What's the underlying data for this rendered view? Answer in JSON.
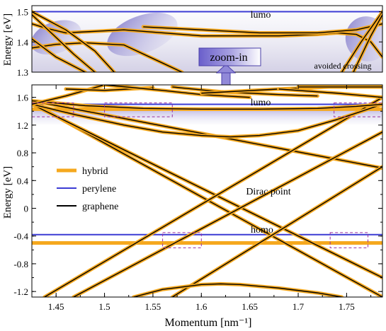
{
  "colors": {
    "hybrid": "#F5A81E",
    "perylene": "#3B3BD4",
    "graphene": "#000000",
    "highlight": "#8C82C8",
    "dashed_box": "#9A2FA0",
    "zoom_box": "#7A6FD0"
  },
  "chart_data": [
    {
      "id": "top-panel",
      "type": "line",
      "title": "",
      "xlabel": "",
      "ylabel": "Energy [eV]",
      "xlim": [
        1.425,
        1.787
      ],
      "ylim": [
        1.3,
        1.52
      ],
      "yticks": [
        1.3,
        1.4,
        1.5
      ],
      "ytick_labels": [
        "1.3",
        "1.4",
        "1.5"
      ],
      "annotations": [
        "lumo",
        "avoided crossing"
      ],
      "lumo_level": 1.5,
      "hybrid_band": {
        "x": [
          1.425,
          1.44,
          1.46,
          1.49,
          1.52,
          1.56,
          1.6,
          1.64,
          1.68,
          1.72,
          1.74,
          1.76,
          1.775,
          1.787
        ],
        "y": [
          1.46,
          1.445,
          1.43,
          1.435,
          1.44,
          1.43,
          1.42,
          1.42,
          1.42,
          1.425,
          1.43,
          1.425,
          1.4,
          1.35
        ]
      },
      "hybrid_lower": {
        "x": [
          1.425,
          1.45,
          1.48,
          1.52,
          1.56,
          1.58
        ],
        "y": [
          1.38,
          1.392,
          1.397,
          1.39,
          1.33,
          1.3
        ]
      },
      "graphene_lines": [
        {
          "x": [
            1.425,
            1.445,
            1.468,
            1.49
          ],
          "y": [
            1.49,
            1.43,
            1.36,
            1.3
          ]
        },
        {
          "x": [
            1.425,
            1.46,
            1.49,
            1.51
          ],
          "y": [
            1.5,
            1.44,
            1.37,
            1.3
          ]
        },
        {
          "x": [
            1.425,
            1.45,
            1.48
          ],
          "y": [
            1.41,
            1.35,
            1.3
          ]
        },
        {
          "x": [
            1.54,
            1.6,
            1.66,
            1.72,
            1.76,
            1.787
          ],
          "y": [
            1.45,
            1.44,
            1.43,
            1.43,
            1.44,
            1.46
          ]
        },
        {
          "x": [
            1.745,
            1.765,
            1.787
          ],
          "y": [
            1.3,
            1.4,
            1.5
          ]
        },
        {
          "x": [
            1.757,
            1.775,
            1.787
          ],
          "y": [
            1.3,
            1.42,
            1.49
          ]
        }
      ],
      "ellipses": [
        {
          "cx": 1.45,
          "cy": 1.415,
          "rx": 0.027,
          "ry": 0.052
        },
        {
          "cx": 1.539,
          "cy": 1.425,
          "rx": 0.038,
          "ry": 0.062
        },
        {
          "cx": 1.771,
          "cy": 1.41,
          "rx": 0.022,
          "ry": 0.075
        }
      ],
      "zoom_label": "zoom-in"
    },
    {
      "id": "main-panel",
      "type": "line",
      "title": "",
      "xlabel": "Momentum [nm⁻¹]",
      "ylabel": "Energy [eV]",
      "xlim": [
        1.425,
        1.787
      ],
      "ylim": [
        -1.28,
        1.78
      ],
      "xticks": [
        1.45,
        1.5,
        1.55,
        1.6,
        1.65,
        1.7,
        1.75
      ],
      "xtick_labels": [
        "1.45",
        "1.5",
        "1.55",
        "1.6",
        "1.65",
        "1.7",
        "1.75"
      ],
      "yticks": [
        -1.2,
        -0.8,
        -0.4,
        0,
        0.4,
        0.8,
        1.2,
        1.6
      ],
      "ytick_labels": [
        "-1.2",
        "-0.8",
        "-0.4",
        "0",
        "0.4",
        "0.8",
        "1.2",
        "1.6"
      ],
      "annotations": [
        "lumo",
        "homo",
        "Dirac point"
      ],
      "legend": {
        "position": "left",
        "entries": [
          {
            "label": "hybrid",
            "color": "#F5A81E"
          },
          {
            "label": "perylene",
            "color": "#3B3BD4"
          },
          {
            "label": "graphene",
            "color": "#000000"
          }
        ]
      },
      "lumo_level": 1.5,
      "homo_level": -0.38,
      "hybrid_flat": [
        1.43,
        -0.5
      ],
      "bands": [
        {
          "x": [
            1.425,
            1.787
          ],
          "y": [
            1.52,
            -1.28
          ]
        },
        {
          "x": [
            1.425,
            1.787
          ],
          "y": [
            1.55,
            0.58
          ]
        },
        {
          "x": [
            1.425,
            1.787
          ],
          "y": [
            1.5,
            -1.0
          ]
        },
        {
          "x": [
            1.438,
            1.787
          ],
          "y": [
            -1.28,
            1.6
          ]
        },
        {
          "x": [
            1.468,
            1.787
          ],
          "y": [
            -1.28,
            1.1
          ]
        },
        {
          "x": [
            1.57,
            1.787
          ],
          "y": [
            -1.28,
            0.6
          ]
        },
        {
          "x": [
            1.425,
            1.47,
            1.52,
            1.56,
            1.6,
            1.63,
            1.66,
            1.7,
            1.74,
            1.787
          ],
          "y": [
            1.5,
            1.35,
            1.2,
            1.1,
            1.05,
            1.03,
            1.05,
            1.12,
            1.28,
            1.5
          ]
        },
        {
          "x": [
            1.425,
            1.48,
            1.54,
            1.6,
            1.66,
            1.72,
            1.76,
            1.787
          ],
          "y": [
            1.55,
            1.48,
            1.44,
            1.43,
            1.43,
            1.44,
            1.47,
            1.5
          ]
        },
        {
          "x": [
            1.53,
            1.56,
            1.6,
            1.62,
            1.64,
            1.68,
            1.72,
            1.745
          ],
          "y": [
            -1.28,
            -1.17,
            -1.1,
            -1.09,
            -1.1,
            -1.15,
            -1.22,
            -1.28
          ]
        },
        {
          "x": [
            1.425,
            1.46,
            1.5
          ],
          "y": [
            1.5,
            1.62,
            1.78
          ]
        },
        {
          "x": [
            1.46,
            1.5,
            1.55
          ],
          "y": [
            1.72,
            1.7,
            1.74
          ]
        },
        {
          "x": [
            1.5,
            1.56,
            1.6,
            1.65
          ],
          "y": [
            1.78,
            1.7,
            1.64,
            1.6
          ]
        },
        {
          "x": [
            1.57,
            1.62,
            1.68,
            1.72
          ],
          "y": [
            1.75,
            1.68,
            1.64,
            1.62
          ]
        },
        {
          "x": [
            1.6,
            1.68,
            1.75,
            1.787
          ],
          "y": [
            1.66,
            1.72,
            1.76,
            1.78
          ]
        },
        {
          "x": [
            1.68,
            1.74,
            1.787
          ],
          "y": [
            1.72,
            1.66,
            1.6
          ]
        },
        {
          "x": [
            1.7,
            1.787
          ],
          "y": [
            1.75,
            1.75
          ]
        }
      ],
      "dashed_regions": [
        {
          "x": [
            1.425,
            1.468
          ],
          "y": [
            1.32,
            1.52
          ]
        },
        {
          "x": [
            1.5,
            1.57
          ],
          "y": [
            1.32,
            1.52
          ]
        },
        {
          "x": [
            1.737,
            1.787
          ],
          "y": [
            1.32,
            1.52
          ]
        },
        {
          "x": [
            1.56,
            1.6
          ],
          "y": [
            -0.57,
            -0.35
          ]
        },
        {
          "x": [
            1.733,
            1.772
          ],
          "y": [
            -0.57,
            -0.35
          ]
        }
      ]
    }
  ]
}
